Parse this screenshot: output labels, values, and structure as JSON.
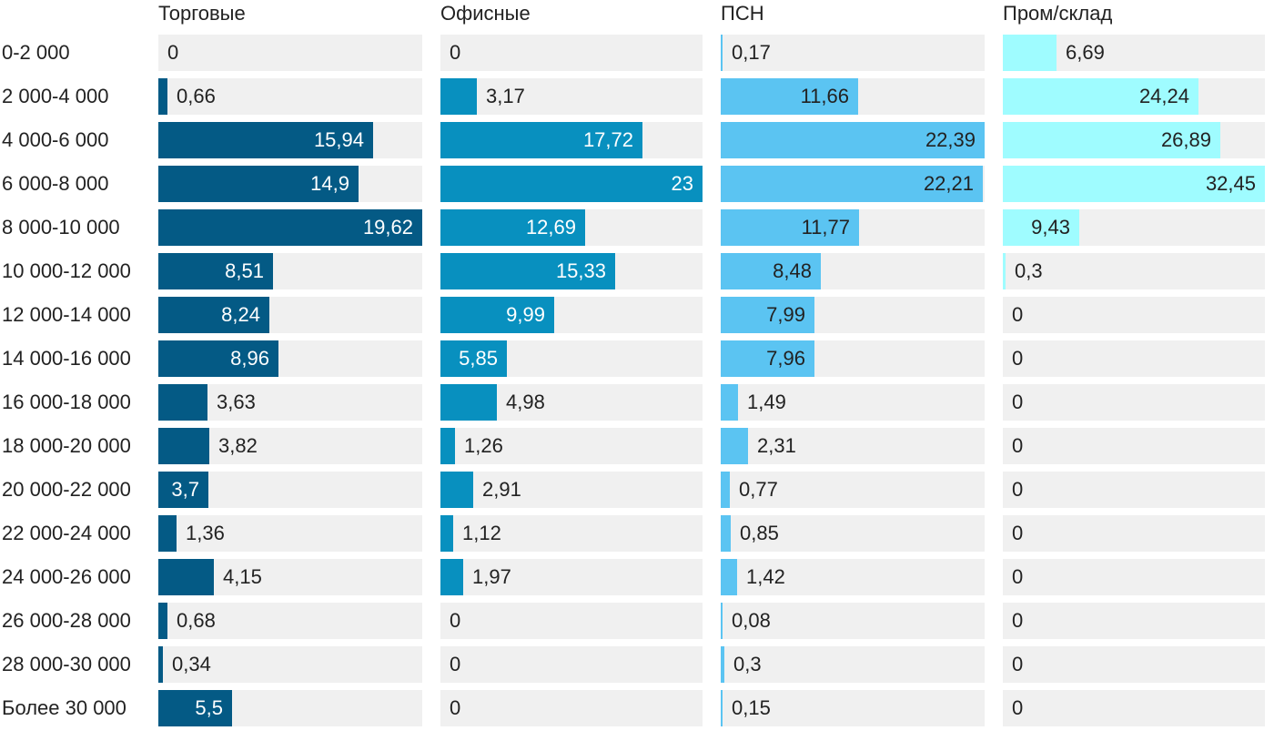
{
  "chart_data": {
    "type": "bar",
    "categories": [
      "0-2 000",
      "2 000-4 000",
      "4 000-6 000",
      "6 000-8 000",
      "8 000-10 000",
      "10 000-12 000",
      "12 000-14 000",
      "14 000-16 000",
      "16 000-18 000",
      "18 000-20 000",
      "20 000-22 000",
      "22 000-24 000",
      "24 000-26 000",
      "26 000-28 000",
      "28 000-30 000",
      "Более 30 000"
    ],
    "series": [
      {
        "name": "Торговые",
        "color": "#045a85",
        "label_color_inside": "#ffffff",
        "values": [
          0,
          0.66,
          15.94,
          14.9,
          19.62,
          8.51,
          8.24,
          8.96,
          3.63,
          3.82,
          3.7,
          1.36,
          4.15,
          0.68,
          0.34,
          5.5
        ],
        "labels": [
          "0",
          "0,66",
          "15,94",
          "14,9",
          "19,62",
          "8,51",
          "8,24",
          "8,96",
          "3,63",
          "3,82",
          "3,7",
          "1,36",
          "4,15",
          "0,68",
          "0,34",
          "5,5"
        ]
      },
      {
        "name": "Офисные",
        "color": "#0890bf",
        "label_color_inside": "#ffffff",
        "values": [
          0,
          3.17,
          17.72,
          23,
          12.69,
          15.33,
          9.99,
          5.85,
          4.98,
          1.26,
          2.91,
          1.12,
          1.97,
          0,
          0,
          0
        ],
        "labels": [
          "0",
          "3,17",
          "17,72",
          "23",
          "12,69",
          "15,33",
          "9,99",
          "5,85",
          "4,98",
          "1,26",
          "2,91",
          "1,12",
          "1,97",
          "0",
          "0",
          "0"
        ]
      },
      {
        "name": "ПСН",
        "color": "#5bc4f2",
        "label_color_inside": "#222222",
        "values": [
          0.17,
          11.66,
          22.39,
          22.21,
          11.77,
          8.48,
          7.99,
          7.96,
          1.49,
          2.31,
          0.77,
          0.85,
          1.42,
          0.08,
          0.3,
          0.15
        ],
        "labels": [
          "0,17",
          "11,66",
          "22,39",
          "22,21",
          "11,77",
          "8,48",
          "7,99",
          "7,96",
          "1,49",
          "2,31",
          "0,77",
          "0,85",
          "1,42",
          "0,08",
          "0,3",
          "0,15"
        ]
      },
      {
        "name": "Пром/склад",
        "color": "#9ffcff",
        "label_color_inside": "#222222",
        "values": [
          6.69,
          24.24,
          26.89,
          32.45,
          9.43,
          0.3,
          0,
          0,
          0,
          0,
          0,
          0,
          0,
          0,
          0,
          0
        ],
        "labels": [
          "6,69",
          "24,24",
          "26,89",
          "32,45",
          "9,43",
          "0,3",
          "0",
          "0",
          "0",
          "0",
          "0",
          "0",
          "0",
          "0",
          "0",
          "0"
        ]
      }
    ],
    "label_color_outside": "#222222",
    "track_color": "#f0f0f0",
    "xlim": [
      [
        0,
        19.62
      ],
      [
        0,
        23
      ],
      [
        0,
        22.39
      ],
      [
        0,
        32.45
      ]
    ],
    "legend": "none",
    "grid": false
  }
}
